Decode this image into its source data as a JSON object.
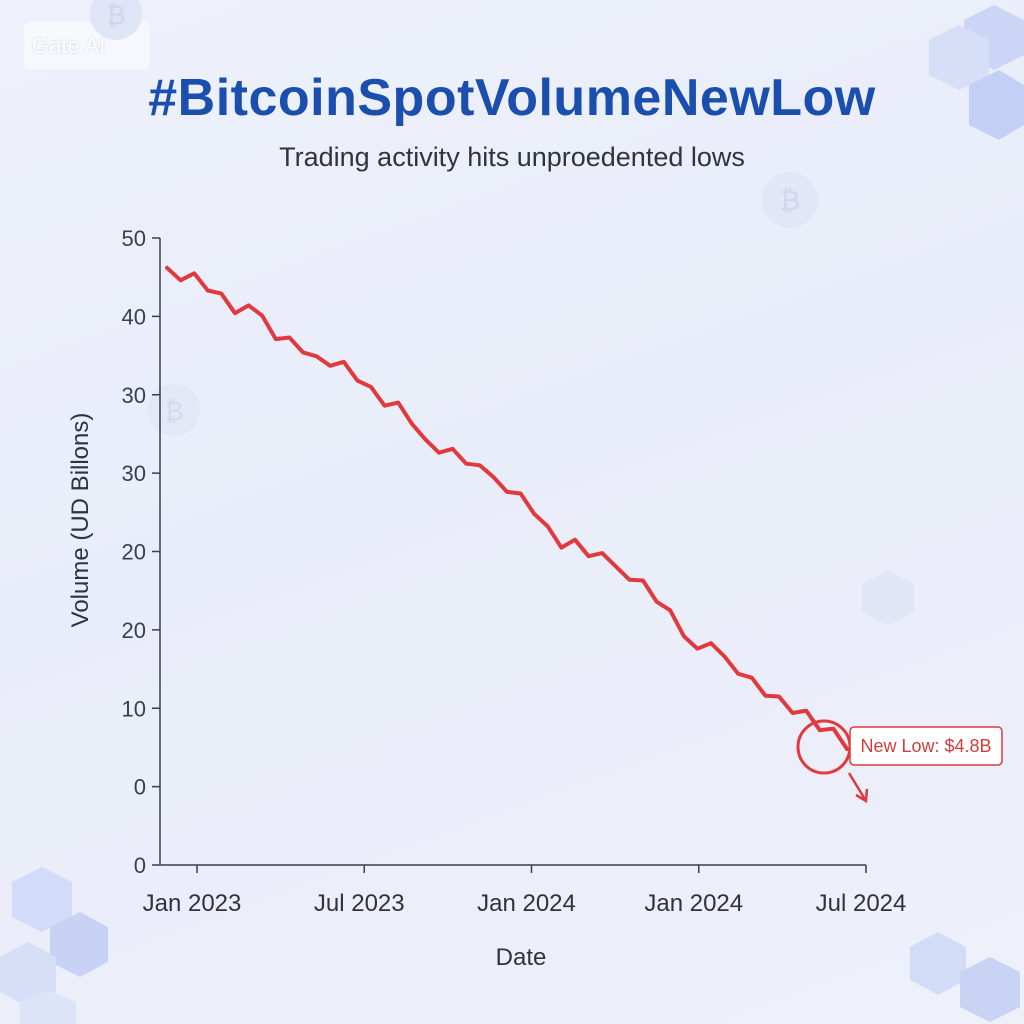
{
  "watermark": "Gate AI",
  "title": "#BitcoinSpotVolumeNewLow",
  "subtitle": "Trading activity hits unproedented lows",
  "colors": {
    "title": "#1a4fae",
    "line": "#e0393e",
    "annotation": "#d63b3b",
    "axis": "#3a3f4b"
  },
  "icons": [
    "bitcoin-coin-icon",
    "cube-cluster-icon"
  ],
  "chart_data": {
    "type": "line",
    "title": "",
    "xlabel": "Date",
    "ylabel": "Volume (UD Billons)",
    "y_tick_labels": [
      "0",
      "0",
      "10",
      "20",
      "20",
      "30",
      "30",
      "40",
      "50"
    ],
    "x_tick_labels": [
      "Jan 2023",
      "Jul 2023",
      "Jan 2024",
      "Jan 2024",
      "Jul 2024"
    ],
    "grid": false,
    "ylim": [
      -10,
      70
    ],
    "series": [
      {
        "name": "",
        "values": [
          [
            0,
            66.2
          ],
          [
            0.4,
            64.6
          ],
          [
            0.8,
            65.5
          ],
          [
            1.2,
            63.3
          ],
          [
            1.6,
            62.9
          ],
          [
            2.0,
            60.4
          ],
          [
            2.4,
            61.4
          ],
          [
            2.8,
            60.1
          ],
          [
            3.2,
            57.1
          ],
          [
            3.6,
            57.3
          ],
          [
            4.0,
            55.4
          ],
          [
            4.4,
            54.9
          ],
          [
            4.8,
            53.7
          ],
          [
            5.2,
            54.2
          ],
          [
            5.6,
            51.8
          ],
          [
            6.0,
            51.0
          ],
          [
            6.4,
            48.6
          ],
          [
            6.8,
            49.0
          ],
          [
            7.2,
            46.3
          ],
          [
            7.6,
            44.3
          ],
          [
            8.0,
            42.6
          ],
          [
            8.4,
            43.1
          ],
          [
            8.8,
            41.2
          ],
          [
            9.2,
            41.0
          ],
          [
            9.6,
            39.5
          ],
          [
            10.0,
            37.6
          ],
          [
            10.4,
            37.4
          ],
          [
            10.8,
            34.8
          ],
          [
            11.2,
            33.2
          ],
          [
            11.6,
            30.5
          ],
          [
            12.0,
            31.5
          ],
          [
            12.4,
            29.4
          ],
          [
            12.8,
            29.8
          ],
          [
            13.2,
            28.1
          ],
          [
            13.6,
            26.4
          ],
          [
            14.0,
            26.3
          ],
          [
            14.4,
            23.6
          ],
          [
            14.8,
            22.5
          ],
          [
            15.2,
            19.2
          ],
          [
            15.6,
            17.6
          ],
          [
            16.0,
            18.3
          ],
          [
            16.4,
            16.6
          ],
          [
            16.8,
            14.4
          ],
          [
            17.2,
            13.9
          ],
          [
            17.6,
            11.6
          ],
          [
            18.0,
            11.5
          ],
          [
            18.4,
            9.4
          ],
          [
            18.8,
            9.7
          ],
          [
            19.2,
            7.2
          ],
          [
            19.6,
            7.4
          ],
          [
            20.0,
            4.8
          ]
        ]
      }
    ],
    "annotation": {
      "label": "New Low: $4.8B",
      "x": 20.0,
      "y": 4.8
    }
  }
}
